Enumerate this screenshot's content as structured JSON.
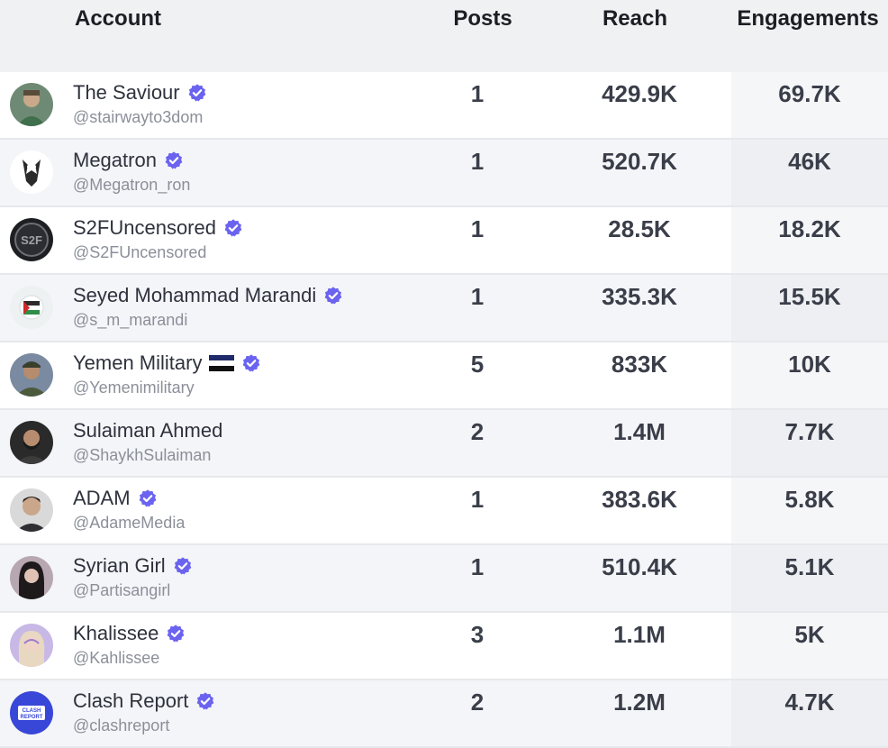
{
  "header": {
    "account": "Account",
    "posts": "Posts",
    "reach": "Reach",
    "engagements": "Engagements"
  },
  "colors": {
    "verified": "#6b63f0",
    "header_bg": "#f0f1f3",
    "alt_row_bg": "#f4f5f8",
    "handle_text": "#8b8f99"
  },
  "rows": [
    {
      "name": "The Saviour",
      "handle": "@stairwayto3dom",
      "posts": "1",
      "reach": "429.9K",
      "engagements": "69.7K",
      "verified": true,
      "avatar": "photo-avatar"
    },
    {
      "name": "Megatron",
      "handle": "@Megatron_ron",
      "posts": "1",
      "reach": "520.7K",
      "engagements": "46K",
      "verified": true,
      "avatar": "robot-avatar"
    },
    {
      "name": "S2FUncensored",
      "handle": "@S2FUncensored",
      "posts": "1",
      "reach": "28.5K",
      "engagements": "18.2K",
      "verified": true,
      "avatar": "logo-avatar"
    },
    {
      "name": "Seyed Mohammad Marandi",
      "handle": "@s_m_marandi",
      "posts": "1",
      "reach": "335.3K",
      "engagements": "15.5K",
      "verified": true,
      "avatar": "flag-avatar"
    },
    {
      "name": "Yemen Military",
      "handle": "@Yemenimilitary",
      "posts": "5",
      "reach": "833K",
      "engagements": "10K",
      "verified": true,
      "flag": "yemen-flag",
      "avatar": "photo-avatar"
    },
    {
      "name": "Sulaiman Ahmed",
      "handle": "@ShaykhSulaiman",
      "posts": "2",
      "reach": "1.4M",
      "engagements": "7.7K",
      "verified": false,
      "avatar": "photo-avatar"
    },
    {
      "name": "ADAM",
      "handle": "@AdameMedia",
      "posts": "1",
      "reach": "383.6K",
      "engagements": "5.8K",
      "verified": true,
      "avatar": "photo-avatar"
    },
    {
      "name": "Syrian Girl",
      "handle": "@Partisangirl",
      "posts": "1",
      "reach": "510.4K",
      "engagements": "5.1K",
      "verified": true,
      "avatar": "photo-avatar"
    },
    {
      "name": "Khalissee",
      "handle": "@Kahlissee",
      "posts": "3",
      "reach": "1.1M",
      "engagements": "5K",
      "verified": true,
      "avatar": "photo-avatar"
    },
    {
      "name": "Clash Report",
      "handle": "@clashreport",
      "posts": "2",
      "reach": "1.2M",
      "engagements": "4.7K",
      "verified": true,
      "avatar": "clash-report-logo-avatar"
    }
  ]
}
